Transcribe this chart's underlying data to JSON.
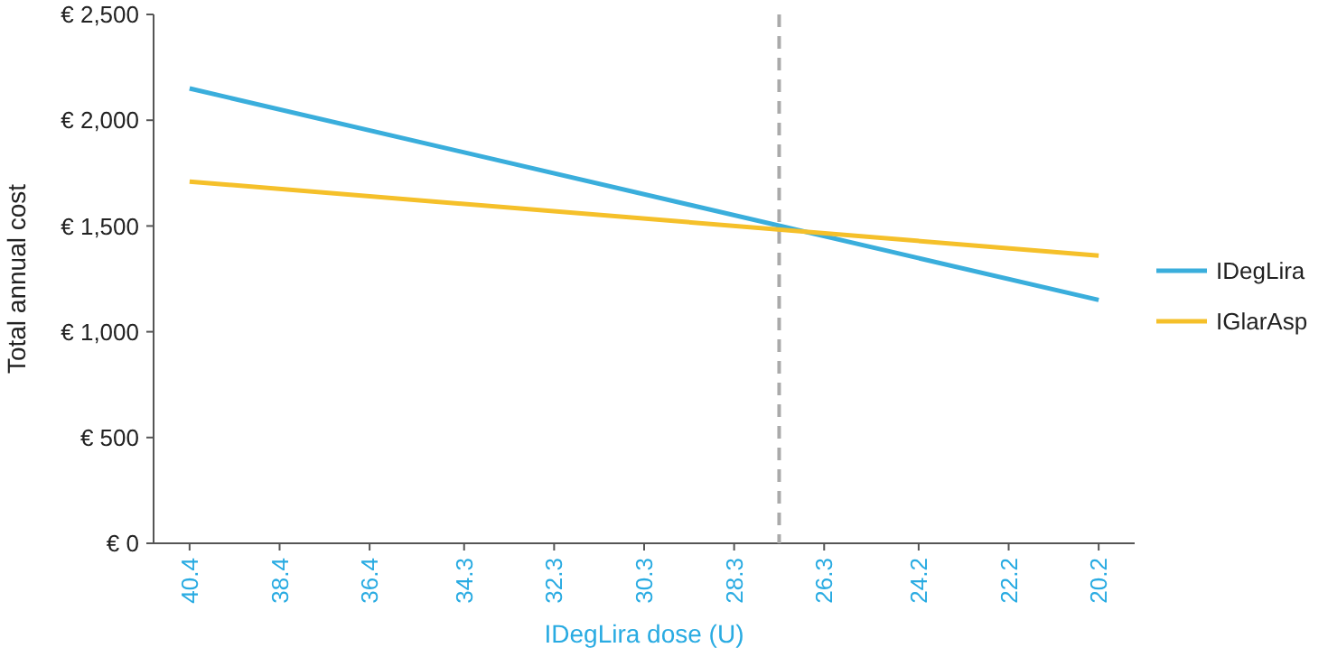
{
  "chart_data": {
    "type": "line",
    "xlabel": "IDegLira dose (U)",
    "ylabel": "Total annual cost",
    "x": [
      40.4,
      20.2
    ],
    "xlim": [
      41.2,
      19.4
    ],
    "xticks": [
      40.4,
      38.4,
      36.4,
      34.3,
      32.3,
      30.3,
      28.3,
      26.3,
      24.2,
      22.2,
      20.2
    ],
    "ylim": [
      0,
      2500
    ],
    "yticks": [
      {
        "value": 0,
        "label": "€ 0"
      },
      {
        "value": 500,
        "label": "€ 500"
      },
      {
        "value": 1000,
        "label": "€ 1,000"
      },
      {
        "value": 1500,
        "label": "€ 1,500"
      },
      {
        "value": 2000,
        "label": "€ 2,000"
      },
      {
        "value": 2500,
        "label": "€ 2,500"
      }
    ],
    "series": [
      {
        "name": "IDegLira",
        "color": "#3aaedc",
        "values": [
          2150,
          1150
        ]
      },
      {
        "name": "IGlarAsp",
        "color": "#f5c02a",
        "values": [
          1710,
          1360
        ]
      }
    ],
    "ref_lines": [
      {
        "axis": "x",
        "value": 27.3,
        "color": "#aaaaaa",
        "line_style": "dashed"
      }
    ],
    "legend": "right",
    "grid": false,
    "marker": "none",
    "line_style": "solid"
  }
}
